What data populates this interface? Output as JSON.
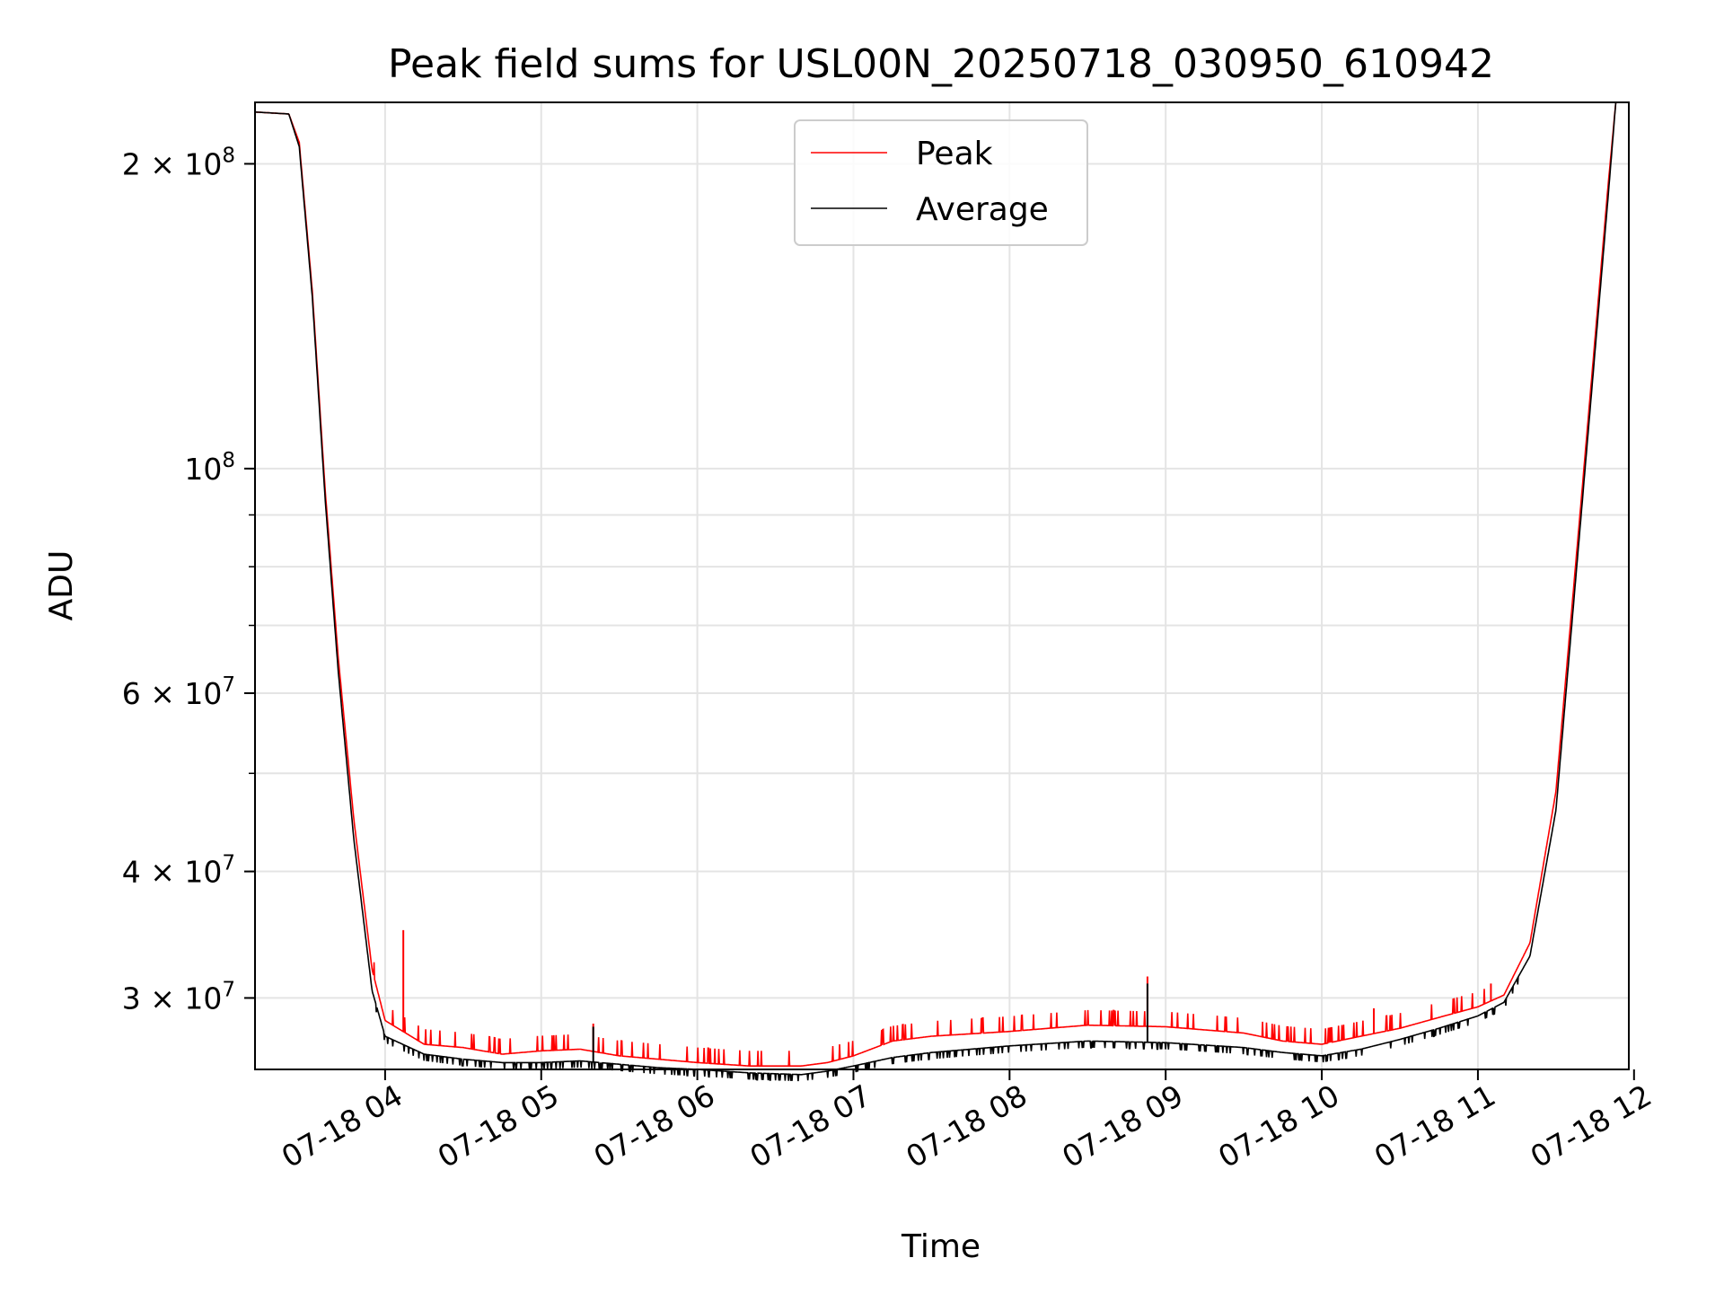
{
  "chart_data": {
    "type": "line",
    "title": "Peak field sums for USL00N_20250718_030950_610942",
    "xlabel": "Time",
    "ylabel": "ADU",
    "yscale": "log",
    "grid": true,
    "legend_position": "top-center",
    "xlim": [
      "2025-07-18 03:10",
      "2025-07-18 11:58"
    ],
    "ylim": [
      25500000,
      230000000
    ],
    "x_ticks": [
      "07-18 04",
      "07-18 05",
      "07-18 06",
      "07-18 07",
      "07-18 08",
      "07-18 09",
      "07-18 10",
      "07-18 11",
      "07-18 12"
    ],
    "y_ticks": [
      {
        "value": 200000000,
        "mantissa": "2",
        "exp": "8"
      },
      {
        "value": 100000000,
        "mantissa": "",
        "exp": "8"
      },
      {
        "value": 60000000,
        "mantissa": "6",
        "exp": "7"
      },
      {
        "value": 40000000,
        "mantissa": "4",
        "exp": "7"
      },
      {
        "value": 30000000,
        "mantissa": "3",
        "exp": "7"
      }
    ],
    "series": [
      {
        "name": "Peak",
        "color": "#ff0000",
        "x": [
          "2025-07-18 03:10",
          "2025-07-18 03:23",
          "2025-07-18 03:27",
          "2025-07-18 03:32",
          "2025-07-18 03:37",
          "2025-07-18 03:42",
          "2025-07-18 03:48",
          "2025-07-18 03:55",
          "2025-07-18 04:00",
          "2025-07-18 04:15",
          "2025-07-18 04:30",
          "2025-07-18 04:45",
          "2025-07-18 05:00",
          "2025-07-18 05:15",
          "2025-07-18 05:30",
          "2025-07-18 05:45",
          "2025-07-18 06:00",
          "2025-07-18 06:20",
          "2025-07-18 06:40",
          "2025-07-18 06:50",
          "2025-07-18 07:00",
          "2025-07-18 07:15",
          "2025-07-18 07:30",
          "2025-07-18 08:00",
          "2025-07-18 08:30",
          "2025-07-18 09:00",
          "2025-07-18 09:30",
          "2025-07-18 09:45",
          "2025-07-18 10:00",
          "2025-07-18 10:15",
          "2025-07-18 10:30",
          "2025-07-18 10:45",
          "2025-07-18 11:00",
          "2025-07-18 11:10",
          "2025-07-18 11:20",
          "2025-07-18 11:30",
          "2025-07-18 11:40",
          "2025-07-18 11:50",
          "2025-07-18 11:53"
        ],
        "values": [
          225000000,
          224000000,
          210000000,
          150000000,
          95000000,
          65000000,
          45000000,
          32000000,
          28500000,
          27000000,
          26800000,
          26400000,
          26600000,
          26700000,
          26300000,
          26100000,
          25900000,
          25700000,
          25700000,
          25900000,
          26300000,
          27200000,
          27500000,
          27800000,
          28200000,
          28100000,
          27700000,
          27200000,
          27000000,
          27500000,
          28000000,
          28700000,
          29400000,
          30200000,
          34000000,
          48000000,
          95000000,
          190000000,
          230000000
        ],
        "spikes": [
          {
            "x": "2025-07-18 04:07",
            "value": 35000000
          },
          {
            "x": "2025-07-18 05:20",
            "value": 28300000
          },
          {
            "x": "2025-07-18 08:53",
            "value": 31500000
          },
          {
            "x": "2025-07-18 10:20",
            "value": 29300000
          },
          {
            "x": "2025-07-18 11:05",
            "value": 31000000
          }
        ]
      },
      {
        "name": "Average",
        "color": "#000000",
        "x": [
          "2025-07-18 03:10",
          "2025-07-18 03:23",
          "2025-07-18 03:27",
          "2025-07-18 03:32",
          "2025-07-18 03:37",
          "2025-07-18 03:42",
          "2025-07-18 03:48",
          "2025-07-18 03:55",
          "2025-07-18 04:00",
          "2025-07-18 04:15",
          "2025-07-18 04:30",
          "2025-07-18 04:45",
          "2025-07-18 05:00",
          "2025-07-18 05:15",
          "2025-07-18 05:30",
          "2025-07-18 05:45",
          "2025-07-18 06:00",
          "2025-07-18 06:20",
          "2025-07-18 06:40",
          "2025-07-18 06:50",
          "2025-07-18 07:00",
          "2025-07-18 07:15",
          "2025-07-18 07:30",
          "2025-07-18 08:00",
          "2025-07-18 08:30",
          "2025-07-18 09:00",
          "2025-07-18 09:30",
          "2025-07-18 09:45",
          "2025-07-18 10:00",
          "2025-07-18 10:15",
          "2025-07-18 10:30",
          "2025-07-18 10:45",
          "2025-07-18 11:00",
          "2025-07-18 11:10",
          "2025-07-18 11:20",
          "2025-07-18 11:30",
          "2025-07-18 11:40",
          "2025-07-18 11:50",
          "2025-07-18 11:53"
        ],
        "values": [
          225000000,
          224000000,
          208000000,
          148000000,
          93000000,
          63000000,
          43000000,
          30500000,
          27500000,
          26400000,
          26100000,
          25900000,
          25900000,
          26000000,
          25800000,
          25600000,
          25500000,
          25300000,
          25200000,
          25400000,
          25700000,
          26200000,
          26500000,
          26900000,
          27200000,
          27100000,
          26800000,
          26500000,
          26300000,
          26700000,
          27300000,
          28000000,
          28800000,
          29700000,
          33000000,
          46000000,
          92000000,
          185000000,
          230000000
        ],
        "spikes": [
          {
            "x": "2025-07-18 05:20",
            "value": 28100000
          },
          {
            "x": "2025-07-18 08:53",
            "value": 31000000
          }
        ]
      }
    ]
  }
}
